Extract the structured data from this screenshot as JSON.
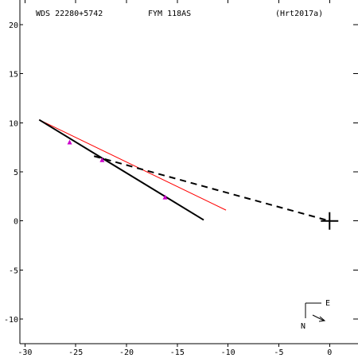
{
  "header": {
    "wds": "WDS 22280+5742",
    "discoverer": "FYM 118AS",
    "reference": "(Hrt2017a)"
  },
  "compass": {
    "north_label": "N",
    "east_label": "E"
  },
  "chart_data": {
    "type": "scatter",
    "title": "",
    "xlabel": "",
    "ylabel": "",
    "xlim": [
      -30.5,
      2.8
    ],
    "ylim": [
      -12.5,
      22.5
    ],
    "x_ticks": [
      -30,
      -25,
      -20,
      -15,
      -10,
      -5,
      0
    ],
    "y_ticks": [
      -10,
      -5,
      0,
      5,
      10,
      15,
      20
    ],
    "grid": false,
    "primary_position": [
      0,
      0
    ],
    "orbit_line": {
      "color": "#000000",
      "points": [
        [
          -28.6,
          10.3
        ],
        [
          -12.4,
          0.1
        ]
      ]
    },
    "red_line": {
      "color": "#ff0000",
      "points": [
        [
          -28.6,
          10.3
        ],
        [
          -10.2,
          1.1
        ]
      ]
    },
    "dashed_line": {
      "color": "#000000",
      "points": [
        [
          -23.2,
          6.6
        ],
        [
          0,
          0
        ]
      ]
    },
    "observations": {
      "color": "#cc00cc",
      "points": [
        [
          -25.6,
          8.0
        ],
        [
          -22.4,
          6.2
        ],
        [
          -16.2,
          2.4
        ]
      ]
    }
  }
}
